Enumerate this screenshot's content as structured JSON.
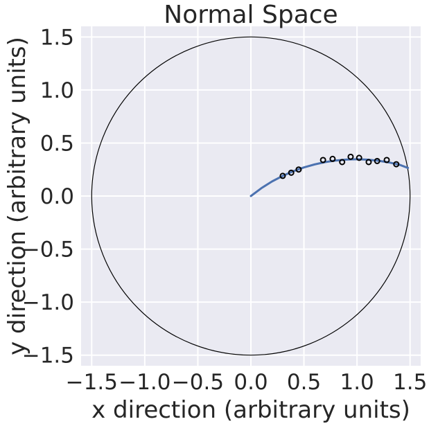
{
  "chart_data": {
    "type": "scatter",
    "title": "Normal Space",
    "xlabel": "x direction (arbitrary units)",
    "ylabel": "y direction (arbitrary units)",
    "xlim": [
      -1.6,
      1.6
    ],
    "ylim": [
      -1.6,
      1.6
    ],
    "x_ticks": [
      -1.5,
      -1.0,
      -0.5,
      0.0,
      0.5,
      1.0,
      1.5
    ],
    "x_tick_labels": [
      "−1.5",
      "−1.0",
      "−0.5",
      "0.0",
      "0.5",
      "1.0",
      "1.5"
    ],
    "y_ticks": [
      1.5,
      1.0,
      0.5,
      0.0,
      -0.5,
      -1.0,
      -1.5
    ],
    "y_tick_labels": [
      "1.5",
      "1.0",
      "0.5",
      "0.0",
      "−0.5",
      "−1.0",
      "−1.5"
    ],
    "grid": true,
    "background_color": "#eaeaf2",
    "grid_color": "#ffffff",
    "circle": {
      "center": [
        0,
        0
      ],
      "radius": 1.5,
      "color": "#000000"
    },
    "series": [
      {
        "kind": "points",
        "marker": "open-circle",
        "color": "#000000",
        "x": [
          0.3,
          0.38,
          0.45,
          0.68,
          0.77,
          0.86,
          0.94,
          1.02,
          1.11,
          1.19,
          1.28,
          1.37
        ],
        "y": [
          0.19,
          0.22,
          0.25,
          0.34,
          0.35,
          0.32,
          0.37,
          0.36,
          0.32,
          0.33,
          0.34,
          0.3
        ]
      },
      {
        "kind": "line",
        "color": "#4c72b0",
        "x": [
          0.0,
          0.1,
          0.2,
          0.3,
          0.4,
          0.5,
          0.6,
          0.7,
          0.8,
          0.9,
          1.0,
          1.1,
          1.2,
          1.3,
          1.4,
          1.48
        ],
        "y": [
          0.0,
          0.075,
          0.138,
          0.19,
          0.234,
          0.27,
          0.298,
          0.32,
          0.335,
          0.344,
          0.347,
          0.343,
          0.333,
          0.317,
          0.295,
          0.265
        ]
      }
    ]
  }
}
